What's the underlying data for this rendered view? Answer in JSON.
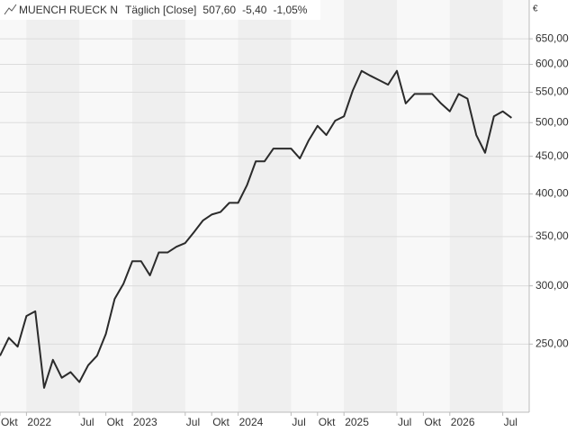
{
  "chart_data": {
    "type": "line",
    "title": "MUENCH RUECK N",
    "subtitle": "Täglich [Close]",
    "last_price": "507,60",
    "change": "-5,40",
    "change_pct": "-1,05%",
    "currency": "€",
    "log_scale": true,
    "grid": true,
    "x": [
      "2021-10",
      "2021-11",
      "2021-12",
      "2022-01",
      "2022-02",
      "2022-03",
      "2022-04",
      "2022-05",
      "2022-06",
      "2022-07",
      "2022-08",
      "2022-09",
      "2022-10",
      "2022-11",
      "2022-12",
      "2023-01",
      "2023-02",
      "2023-03",
      "2023-04",
      "2023-05",
      "2023-06",
      "2023-07",
      "2023-08",
      "2023-09",
      "2023-10",
      "2023-11",
      "2023-12",
      "2024-01",
      "2024-02",
      "2024-03",
      "2024-04",
      "2024-05",
      "2024-06",
      "2024-07",
      "2024-08",
      "2024-09",
      "2024-10",
      "2024-11",
      "2024-12",
      "2025-01",
      "2025-02",
      "2025-03",
      "2025-04",
      "2025-05",
      "2025-06",
      "2025-07",
      "2025-08",
      "2025-09",
      "2025-10",
      "2025-11",
      "2025-12",
      "2026-01",
      "2026-02",
      "2026-03",
      "2026-04",
      "2026-05",
      "2026-06",
      "2026-07",
      "2026-08"
    ],
    "series": [
      {
        "name": "MUENCH RUECK N",
        "color": "#2b2b2b",
        "values": [
          241,
          255,
          248,
          273,
          277,
          218,
          238,
          225,
          229,
          222,
          234,
          241,
          258,
          288,
          302,
          324,
          324,
          310,
          333,
          333,
          339,
          343,
          355,
          368,
          375,
          378,
          389,
          389,
          411,
          443,
          443,
          461,
          461,
          461,
          447,
          473,
          495,
          481,
          503,
          510,
          553,
          588,
          579,
          571,
          563,
          588,
          531,
          547,
          547,
          547,
          531,
          518,
          547,
          539,
          481,
          455,
          510,
          518,
          507.6
        ]
      }
    ],
    "xlim": [
      "2021-10",
      "2026-10"
    ],
    "xticks": [
      {
        "value": "2021-10",
        "label": "Okt"
      },
      {
        "value": "2022-01",
        "label": "2022"
      },
      {
        "value": "2022-07",
        "label": "Jul"
      },
      {
        "value": "2022-10",
        "label": "Okt"
      },
      {
        "value": "2023-01",
        "label": "2023"
      },
      {
        "value": "2023-07",
        "label": "Jul"
      },
      {
        "value": "2023-10",
        "label": "Okt"
      },
      {
        "value": "2024-01",
        "label": "2024"
      },
      {
        "value": "2024-07",
        "label": "Jul"
      },
      {
        "value": "2024-10",
        "label": "Okt"
      },
      {
        "value": "2025-01",
        "label": "2025"
      },
      {
        "value": "2025-07",
        "label": "Jul"
      },
      {
        "value": "2025-10",
        "label": "Okt"
      },
      {
        "value": "2026-01",
        "label": "2026"
      },
      {
        "value": "2026-07",
        "label": "Jul"
      }
    ],
    "ylim": [
      202,
      734
    ],
    "yticks": [
      {
        "value": 250,
        "label": "250,00"
      },
      {
        "value": 300,
        "label": "300,00"
      },
      {
        "value": 350,
        "label": "350,00"
      },
      {
        "value": 400,
        "label": "400,00"
      },
      {
        "value": 450,
        "label": "450,00"
      },
      {
        "value": 500,
        "label": "500,00"
      },
      {
        "value": 550,
        "label": "550,00"
      },
      {
        "value": 600,
        "label": "600,00"
      },
      {
        "value": 650,
        "label": "650,00"
      }
    ]
  }
}
